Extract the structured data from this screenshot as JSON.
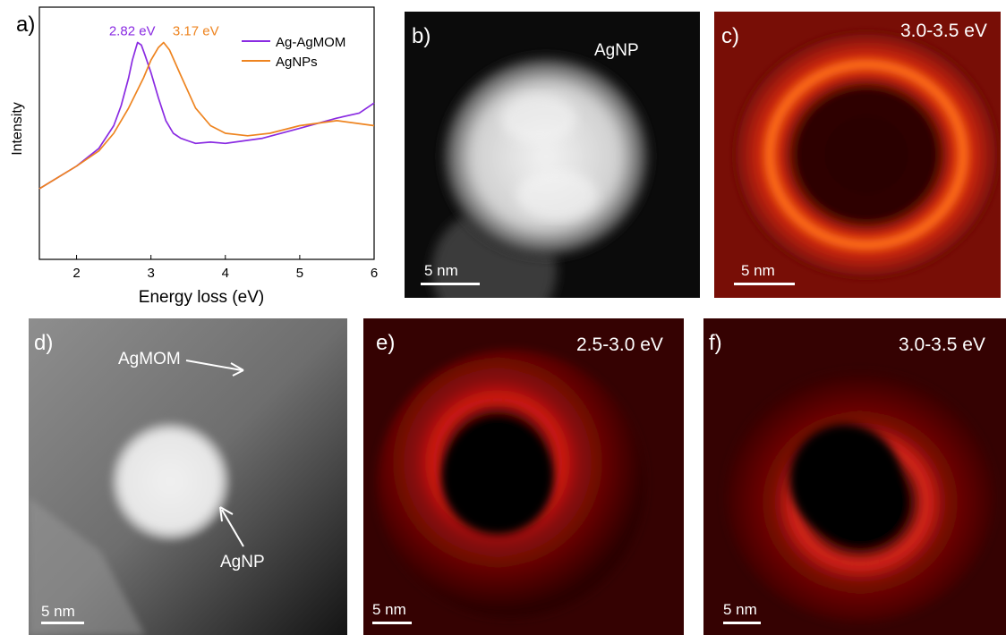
{
  "panels": {
    "a": {
      "label": "a)"
    },
    "b": {
      "label": "b)",
      "annotation": "AgNP",
      "scalebar": "5 nm"
    },
    "c": {
      "label": "c)",
      "energy": "3.0-3.5 eV",
      "scalebar": "5 nm"
    },
    "d": {
      "label": "d)",
      "annotation_top": "AgMOM",
      "annotation_bottom": "AgNP",
      "scalebar": "5 nm"
    },
    "e": {
      "label": "e)",
      "energy": "2.5-3.0 eV",
      "scalebar": "5 nm"
    },
    "f": {
      "label": "f)",
      "energy": "3.0-3.5 eV",
      "scalebar": "5 nm"
    }
  },
  "chart_data": {
    "type": "line",
    "xlabel": "Energy  loss (eV)",
    "ylabel": "Intensity",
    "xlim": [
      1.5,
      6
    ],
    "ylim": [
      0,
      1
    ],
    "x_ticks": [
      "2",
      "3",
      "4",
      "5",
      "6"
    ],
    "y_ticks": [],
    "legend_position": "top-right",
    "colors": {
      "ag_agmom": "#8a2be2",
      "agnps": "#ee8420"
    },
    "series": [
      {
        "name": "Ag-AgMOM",
        "x": [
          1.5,
          2.0,
          2.3,
          2.5,
          2.6,
          2.7,
          2.75,
          2.8,
          2.82,
          2.87,
          2.92,
          3.0,
          3.1,
          3.2,
          3.3,
          3.4,
          3.5,
          3.6,
          3.8,
          4.0,
          4.5,
          5.0,
          5.5,
          5.8,
          6.0
        ],
        "y": [
          0.28,
          0.37,
          0.44,
          0.53,
          0.61,
          0.72,
          0.79,
          0.84,
          0.86,
          0.85,
          0.81,
          0.74,
          0.64,
          0.55,
          0.5,
          0.48,
          0.47,
          0.46,
          0.465,
          0.46,
          0.48,
          0.52,
          0.56,
          0.58,
          0.62
        ]
      },
      {
        "name": "AgNPs",
        "x": [
          1.5,
          2.0,
          2.3,
          2.5,
          2.7,
          2.9,
          3.0,
          3.1,
          3.17,
          3.25,
          3.4,
          3.6,
          3.8,
          4.0,
          4.3,
          4.6,
          5.0,
          5.5,
          6.0
        ],
        "y": [
          0.28,
          0.37,
          0.43,
          0.5,
          0.6,
          0.72,
          0.79,
          0.84,
          0.86,
          0.83,
          0.73,
          0.6,
          0.53,
          0.5,
          0.49,
          0.5,
          0.53,
          0.55,
          0.53
        ]
      }
    ],
    "annotations": [
      {
        "text": "2.82 eV",
        "x": 2.82,
        "y": 0.86,
        "color": "#8a2be2"
      },
      {
        "text": "3.17 eV",
        "x": 3.17,
        "y": 0.86,
        "color": "#ee8420"
      }
    ]
  }
}
